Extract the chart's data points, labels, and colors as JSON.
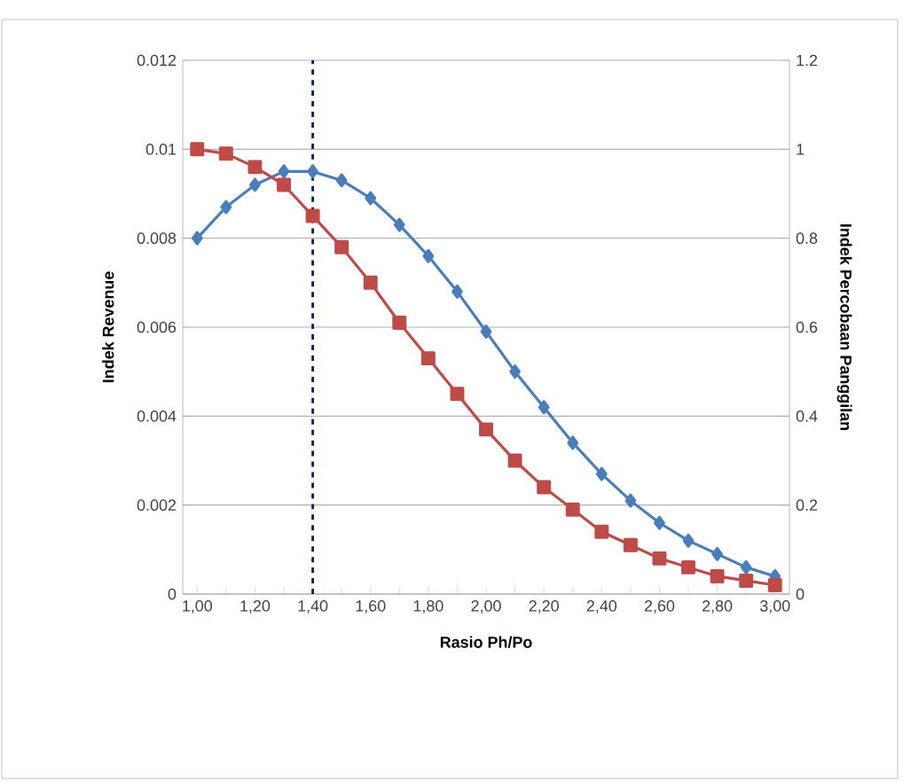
{
  "chart_data": {
    "type": "line",
    "xlabel": "Rasio Ph/Po",
    "ylabel": "Indek Revenue",
    "y2label": "Indek Percobaan Panggilan",
    "x": [
      1.0,
      1.1,
      1.2,
      1.3,
      1.4,
      1.5,
      1.6,
      1.7,
      1.8,
      1.9,
      2.0,
      2.1,
      2.2,
      2.3,
      2.4,
      2.5,
      2.6,
      2.7,
      2.8,
      2.9,
      3.0
    ],
    "series": [
      {
        "color": "#4a7ebb",
        "marker": "diamond",
        "values": [
          0.008,
          0.0087,
          0.0092,
          0.0095,
          0.0095,
          0.0093,
          0.0089,
          0.0083,
          0.0076,
          0.0068,
          0.0059,
          0.005,
          0.0042,
          0.0034,
          0.0027,
          0.0021,
          0.0016,
          0.0012,
          0.0009,
          0.0006,
          0.0004
        ]
      },
      {
        "color": "#be4b48",
        "marker": "square",
        "axis": "y2",
        "values": [
          1.0,
          0.99,
          0.96,
          0.92,
          0.85,
          0.78,
          0.7,
          0.61,
          0.53,
          0.45,
          0.37,
          0.3,
          0.24,
          0.19,
          0.14,
          0.11,
          0.08,
          0.06,
          0.04,
          0.03,
          0.02
        ]
      }
    ],
    "xlim": [
      0.95,
      3.05
    ],
    "xticks": [
      {
        "value": 1.0,
        "label": "1,00"
      },
      {
        "value": 1.1,
        "label": null
      },
      {
        "value": 1.2,
        "label": "1,20"
      },
      {
        "value": 1.3,
        "label": null
      },
      {
        "value": 1.4,
        "label": "1,40"
      },
      {
        "value": 1.5,
        "label": null
      },
      {
        "value": 1.6,
        "label": "1,60"
      },
      {
        "value": 1.7,
        "label": null
      },
      {
        "value": 1.8,
        "label": "1,80"
      },
      {
        "value": 1.9,
        "label": null
      },
      {
        "value": 2.0,
        "label": "2,00"
      },
      {
        "value": 2.1,
        "label": null
      },
      {
        "value": 2.2,
        "label": "2,20"
      },
      {
        "value": 2.3,
        "label": null
      },
      {
        "value": 2.4,
        "label": "2,40"
      },
      {
        "value": 2.5,
        "label": null
      },
      {
        "value": 2.6,
        "label": "2,60"
      },
      {
        "value": 2.7,
        "label": null
      },
      {
        "value": 2.8,
        "label": "2,80"
      },
      {
        "value": 2.9,
        "label": null
      },
      {
        "value": 3.0,
        "label": "3,00"
      }
    ],
    "ylim": [
      0,
      0.012
    ],
    "yticks": [
      0,
      0.002,
      0.004,
      0.006,
      0.008,
      0.01,
      0.012
    ],
    "y2lim": [
      0,
      1.2
    ],
    "y2ticks": [
      0,
      0.2,
      0.4,
      0.6,
      0.8,
      1,
      1.2
    ],
    "ref_lines": [
      {
        "axis": "x",
        "value": 1.4,
        "color": "#002060",
        "line_style": "dashed"
      }
    ],
    "grid": "y",
    "line_style": "solid"
  }
}
